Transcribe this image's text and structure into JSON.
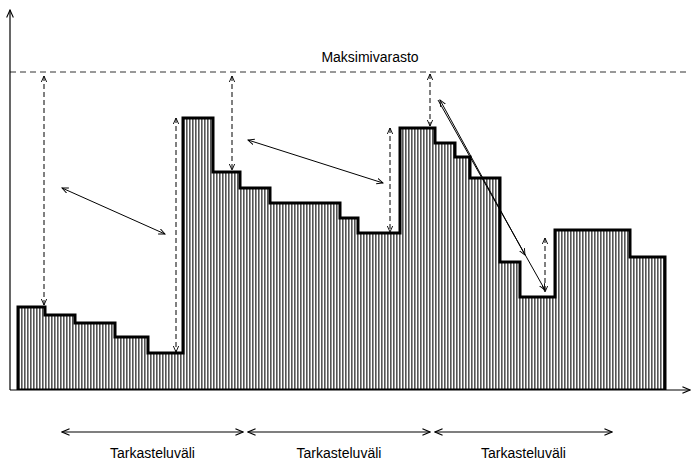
{
  "chart_data": {
    "type": "step_area",
    "x": [
      8,
      35,
      65,
      105,
      138,
      173,
      203,
      230,
      260,
      330,
      348,
      390,
      425,
      445,
      460,
      490,
      510,
      545,
      620,
      655
    ],
    "values": [
      83,
      75,
      67,
      53,
      37,
      272,
      218,
      202,
      187,
      172,
      157,
      262,
      247,
      233,
      212,
      128,
      93,
      160,
      133,
      133
    ],
    "color": "#555555",
    "xlim": [
      0,
      680
    ],
    "ylim": [
      0,
      380
    ],
    "xticks": [],
    "yticks": [],
    "tick_labels": false,
    "grid": false,
    "max_level": {
      "label": "Maksimivarasto",
      "value": 318
    },
    "review_intervals": [
      {
        "label": "Tarkasteluväli",
        "start": 52,
        "end": 233
      },
      {
        "label": "Tarkasteluväli",
        "start": 238,
        "end": 420
      },
      {
        "label": "Tarkasteluväli",
        "start": 425,
        "end": 602
      }
    ]
  }
}
